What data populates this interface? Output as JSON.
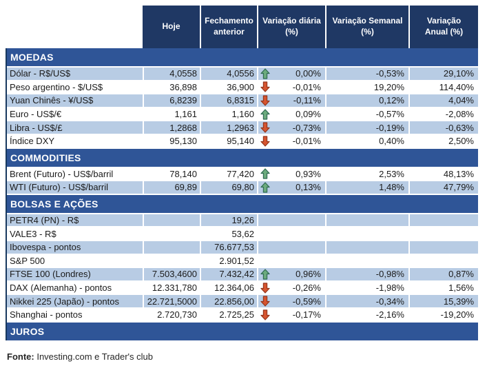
{
  "colors": {
    "header_bg": "#1F3864",
    "section_bg": "#2F5597",
    "row_shaded_bg": "#B8CCE4",
    "row_plain_bg": "#FFFFFF",
    "border_dark": "#17375E",
    "text_dark": "#1A1A1A",
    "arrow_up_fill": "#6CAB7D",
    "arrow_up_stroke": "#2F6A52",
    "arrow_down_fill": "#D6542F",
    "arrow_down_stroke": "#93351C"
  },
  "table": {
    "columns": [
      "Hoje",
      "Fechamento\nanterior",
      "Variação diária\n(%)",
      "Variação Semanal\n(%)",
      "Variação\nAnual (%)"
    ],
    "sections": [
      {
        "title": "MOEDAS",
        "rows": [
          {
            "label": "Dólar - R$/US$",
            "hoje": "4,0558",
            "fechamento": "4,0556",
            "arrow": "up",
            "diaria": "0,00%",
            "semanal": "-0,53%",
            "anual": "29,10%",
            "shaded": true
          },
          {
            "label": "Peso argentino - $/US$",
            "hoje": "36,898",
            "fechamento": "36,900",
            "arrow": "down",
            "diaria": "-0,01%",
            "semanal": "19,20%",
            "anual": "114,40%",
            "shaded": false
          },
          {
            "label": "Yuan Chinês - ¥/US$",
            "hoje": "6,8239",
            "fechamento": "6,8315",
            "arrow": "down",
            "diaria": "-0,11%",
            "semanal": "0,12%",
            "anual": "4,04%",
            "shaded": true
          },
          {
            "label": "Euro - US$/€",
            "hoje": "1,161",
            "fechamento": "1,160",
            "arrow": "up",
            "diaria": "0,09%",
            "semanal": "-0,57%",
            "anual": "-2,08%",
            "shaded": false
          },
          {
            "label": "Libra - US$/£",
            "hoje": "1,2868",
            "fechamento": "1,2963",
            "arrow": "down",
            "diaria": "-0,73%",
            "semanal": "-0,19%",
            "anual": "-0,63%",
            "shaded": true
          },
          {
            "label": "Índice DXY",
            "hoje": "95,130",
            "fechamento": "95,140",
            "arrow": "down",
            "diaria": "-0,01%",
            "semanal": "0,40%",
            "anual": "2,50%",
            "shaded": false
          }
        ]
      },
      {
        "title": "COMMODITIES",
        "rows": [
          {
            "label": "Brent (Futuro) - US$/barril",
            "hoje": "78,140",
            "fechamento": "77,420",
            "arrow": "up",
            "diaria": "0,93%",
            "semanal": "2,53%",
            "anual": "48,13%",
            "shaded": false
          },
          {
            "label": "WTI (Futuro) - US$/barril",
            "hoje": "69,89",
            "fechamento": "69,80",
            "arrow": "up",
            "diaria": "0,13%",
            "semanal": "1,48%",
            "anual": "47,79%",
            "shaded": true
          }
        ]
      },
      {
        "title": "BOLSAS E AÇÕES",
        "rows": [
          {
            "label": "PETR4 (PN) - R$",
            "hoje": "",
            "fechamento": "19,26",
            "arrow": null,
            "diaria": "",
            "semanal": "",
            "anual": "",
            "shaded": true
          },
          {
            "label": "VALE3 - R$",
            "hoje": "",
            "fechamento": "53,62",
            "arrow": null,
            "diaria": "",
            "semanal": "",
            "anual": "",
            "shaded": false
          },
          {
            "label": "Ibovespa - pontos",
            "hoje": "",
            "fechamento": "76.677,53",
            "arrow": null,
            "diaria": "",
            "semanal": "",
            "anual": "",
            "shaded": true
          },
          {
            "label": "S&P 500",
            "hoje": "",
            "fechamento": "2.901,52",
            "arrow": null,
            "diaria": "",
            "semanal": "",
            "anual": "",
            "shaded": false
          },
          {
            "label": "FTSE 100 (Londres)",
            "hoje": "7.503,4600",
            "fechamento": "7.432,42",
            "arrow": "up",
            "diaria": "0,96%",
            "semanal": "-0,98%",
            "anual": "0,87%",
            "shaded": true
          },
          {
            "label": "DAX (Alemanha) - pontos",
            "hoje": "12.331,780",
            "fechamento": "12.364,06",
            "arrow": "down",
            "diaria": "-0,26%",
            "semanal": "-1,98%",
            "anual": "1,56%",
            "shaded": false
          },
          {
            "label": "Nikkei 225 (Japão) - pontos",
            "hoje": "22.721,5000",
            "fechamento": "22.856,00",
            "arrow": "down",
            "diaria": "-0,59%",
            "semanal": "-0,34%",
            "anual": "15,39%",
            "shaded": true
          },
          {
            "label": "Shanghai - pontos",
            "hoje": "2.720,730",
            "fechamento": "2.725,25",
            "arrow": "down",
            "diaria": "-0,17%",
            "semanal": "-2,16%",
            "anual": "-19,20%",
            "shaded": false
          }
        ]
      },
      {
        "title": "JUROS",
        "rows": []
      }
    ]
  },
  "footer": {
    "label": "Fonte:",
    "text": " Investing.com e Trader's club"
  }
}
